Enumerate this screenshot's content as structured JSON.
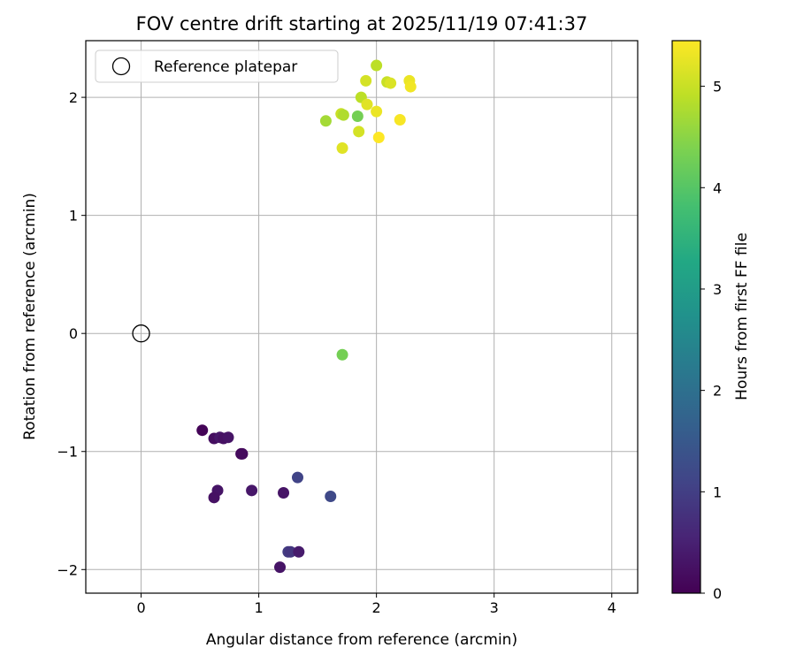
{
  "chart_data": {
    "type": "scatter",
    "title": "FOV centre drift starting at 2025/11/19 07:41:37",
    "xlabel": "Angular distance from reference (arcmin)",
    "ylabel": "Rotation from reference (arcmin)",
    "colorbar_label": "Hours from first FF file",
    "colormap": "viridis",
    "xlim": [
      -0.47,
      4.22
    ],
    "ylim": [
      -2.2,
      2.48
    ],
    "xticks": [
      0,
      1,
      2,
      3,
      4
    ],
    "xtick_labels": [
      "0",
      "1",
      "2",
      "3",
      "4"
    ],
    "yticks": [
      2,
      1,
      0,
      -1,
      -2
    ],
    "ytick_labels": [
      "2",
      "1",
      "0",
      "−1",
      "−2"
    ],
    "clim": [
      0,
      5.45
    ],
    "cticks": [
      0,
      1,
      2,
      3,
      4,
      5
    ],
    "ctick_labels": [
      "0",
      "1",
      "2",
      "3",
      "4",
      "5"
    ],
    "grid": true,
    "legend": {
      "position": "top-left",
      "label": "Reference platepar"
    },
    "reference": {
      "x": 0,
      "y": 0
    },
    "points": [
      {
        "x": 0.52,
        "y": -0.82,
        "c": 0.05
      },
      {
        "x": 0.62,
        "y": -0.89,
        "c": 0.2
      },
      {
        "x": 0.67,
        "y": -0.88,
        "c": 0.35
      },
      {
        "x": 0.7,
        "y": -0.89,
        "c": 0.25
      },
      {
        "x": 0.74,
        "y": -0.88,
        "c": 0.3
      },
      {
        "x": 0.85,
        "y": -1.02,
        "c": 0.1
      },
      {
        "x": 0.86,
        "y": -1.02,
        "c": 0.15
      },
      {
        "x": 0.65,
        "y": -1.33,
        "c": 0.3
      },
      {
        "x": 0.62,
        "y": -1.39,
        "c": 0.25
      },
      {
        "x": 0.94,
        "y": -1.33,
        "c": 0.35
      },
      {
        "x": 1.21,
        "y": -1.35,
        "c": 0.3
      },
      {
        "x": 1.33,
        "y": -1.22,
        "c": 1.1
      },
      {
        "x": 1.61,
        "y": -1.38,
        "c": 1.2
      },
      {
        "x": 1.25,
        "y": -1.85,
        "c": 0.95
      },
      {
        "x": 1.27,
        "y": -1.85,
        "c": 0.85
      },
      {
        "x": 1.34,
        "y": -1.85,
        "c": 0.4
      },
      {
        "x": 1.18,
        "y": -1.98,
        "c": 0.3
      },
      {
        "x": 1.71,
        "y": -0.18,
        "c": 4.3
      },
      {
        "x": 1.57,
        "y": 1.8,
        "c": 4.7
      },
      {
        "x": 1.7,
        "y": 1.86,
        "c": 5.0
      },
      {
        "x": 1.72,
        "y": 1.85,
        "c": 4.8
      },
      {
        "x": 1.84,
        "y": 1.84,
        "c": 4.3
      },
      {
        "x": 1.85,
        "y": 1.71,
        "c": 5.1
      },
      {
        "x": 1.71,
        "y": 1.57,
        "c": 5.2
      },
      {
        "x": 1.87,
        "y": 2.0,
        "c": 4.9
      },
      {
        "x": 1.91,
        "y": 2.14,
        "c": 5.1
      },
      {
        "x": 1.92,
        "y": 1.94,
        "c": 5.2
      },
      {
        "x": 2.0,
        "y": 2.27,
        "c": 4.9
      },
      {
        "x": 2.0,
        "y": 1.88,
        "c": 5.3
      },
      {
        "x": 2.02,
        "y": 1.66,
        "c": 5.45
      },
      {
        "x": 2.09,
        "y": 2.13,
        "c": 5.0
      },
      {
        "x": 2.12,
        "y": 2.12,
        "c": 5.15
      },
      {
        "x": 2.2,
        "y": 1.81,
        "c": 5.4
      },
      {
        "x": 2.28,
        "y": 2.14,
        "c": 5.3
      },
      {
        "x": 2.29,
        "y": 2.09,
        "c": 5.35
      }
    ]
  }
}
